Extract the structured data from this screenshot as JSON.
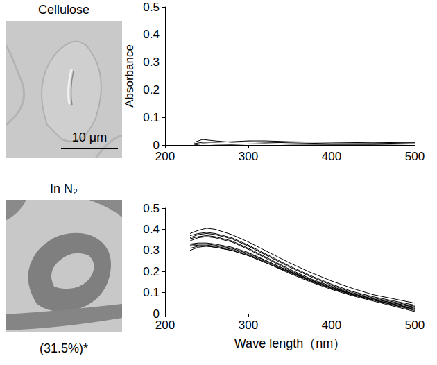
{
  "images": [
    {
      "title": "Cellulose",
      "scale_bar": "10 μm"
    },
    {
      "title": "In N₂",
      "caption": "(31.5%)*"
    }
  ],
  "chart_data": [
    {
      "type": "line",
      "ylabel": "Absorbance",
      "xlim": [
        200,
        500
      ],
      "xticks": [
        200,
        300,
        400,
        500
      ],
      "ylim": [
        0,
        0.5
      ],
      "yticks": [
        0,
        0.1,
        0.2,
        0.3,
        0.4,
        0.5
      ],
      "grid": false,
      "x": [
        235,
        245,
        260,
        280,
        300,
        320,
        350,
        400,
        450,
        500
      ],
      "series": [
        {
          "color": "#000000",
          "values": [
            0.01,
            0.02,
            0.015,
            0.01,
            0.012,
            0.01,
            0.008,
            0.005,
            0.005,
            0.008
          ]
        },
        {
          "color": "#000000",
          "values": [
            0.005,
            0.01,
            0.01,
            0.012,
            0.015,
            0.015,
            0.012,
            0.01,
            0.008,
            0.01
          ]
        },
        {
          "color": "#000000",
          "values": [
            0,
            0.005,
            0.003,
            0.002,
            0.004,
            0.005,
            0.003,
            0.002,
            0.002,
            0.004
          ]
        }
      ]
    },
    {
      "type": "line",
      "xlabel": "Wave length（nm）",
      "xlim": [
        200,
        500
      ],
      "xticks": [
        200,
        300,
        400,
        500
      ],
      "ylim": [
        0,
        0.5
      ],
      "yticks": [
        0,
        0.1,
        0.2,
        0.3,
        0.4,
        0.5
      ],
      "grid": false,
      "x": [
        230,
        240,
        250,
        260,
        280,
        300,
        325,
        350,
        375,
        400,
        425,
        450,
        475,
        500
      ],
      "series": [
        {
          "color": "#000000",
          "values": [
            0.38,
            0.395,
            0.405,
            0.4,
            0.375,
            0.34,
            0.29,
            0.24,
            0.195,
            0.155,
            0.12,
            0.09,
            0.07,
            0.05
          ]
        },
        {
          "color": "#000000",
          "values": [
            0.37,
            0.38,
            0.385,
            0.38,
            0.36,
            0.325,
            0.275,
            0.225,
            0.18,
            0.14,
            0.105,
            0.08,
            0.06,
            0.04
          ]
        },
        {
          "color": "#000000",
          "values": [
            0.36,
            0.375,
            0.38,
            0.375,
            0.355,
            0.32,
            0.27,
            0.22,
            0.175,
            0.135,
            0.1,
            0.075,
            0.055,
            0.035
          ]
        },
        {
          "color": "#000000",
          "values": [
            0.355,
            0.365,
            0.37,
            0.365,
            0.345,
            0.31,
            0.26,
            0.21,
            0.165,
            0.13,
            0.095,
            0.07,
            0.05,
            0.03
          ]
        },
        {
          "color": "#000000",
          "values": [
            0.345,
            0.36,
            0.365,
            0.36,
            0.34,
            0.305,
            0.255,
            0.205,
            0.16,
            0.125,
            0.09,
            0.065,
            0.045,
            0.025
          ]
        },
        {
          "color": "#000000",
          "values": [
            0.33,
            0.335,
            0.335,
            0.33,
            0.315,
            0.29,
            0.245,
            0.2,
            0.16,
            0.125,
            0.095,
            0.07,
            0.05,
            0.03
          ]
        },
        {
          "color": "#000000",
          "values": [
            0.325,
            0.33,
            0.33,
            0.325,
            0.31,
            0.285,
            0.245,
            0.2,
            0.155,
            0.12,
            0.09,
            0.065,
            0.045,
            0.02
          ]
        },
        {
          "color": "#000000",
          "values": [
            0.32,
            0.325,
            0.325,
            0.32,
            0.305,
            0.28,
            0.24,
            0.195,
            0.155,
            0.12,
            0.09,
            0.065,
            0.04,
            0.015
          ]
        },
        {
          "color": "#000000",
          "values": [
            0.31,
            0.32,
            0.32,
            0.315,
            0.3,
            0.275,
            0.235,
            0.19,
            0.15,
            0.115,
            0.085,
            0.06,
            0.035,
            0.01
          ]
        },
        {
          "color": "#000000",
          "values": [
            0.3,
            0.315,
            0.32,
            0.315,
            0.3,
            0.275,
            0.235,
            0.195,
            0.155,
            0.12,
            0.09,
            0.065,
            0.04,
            0.02
          ]
        }
      ]
    }
  ]
}
